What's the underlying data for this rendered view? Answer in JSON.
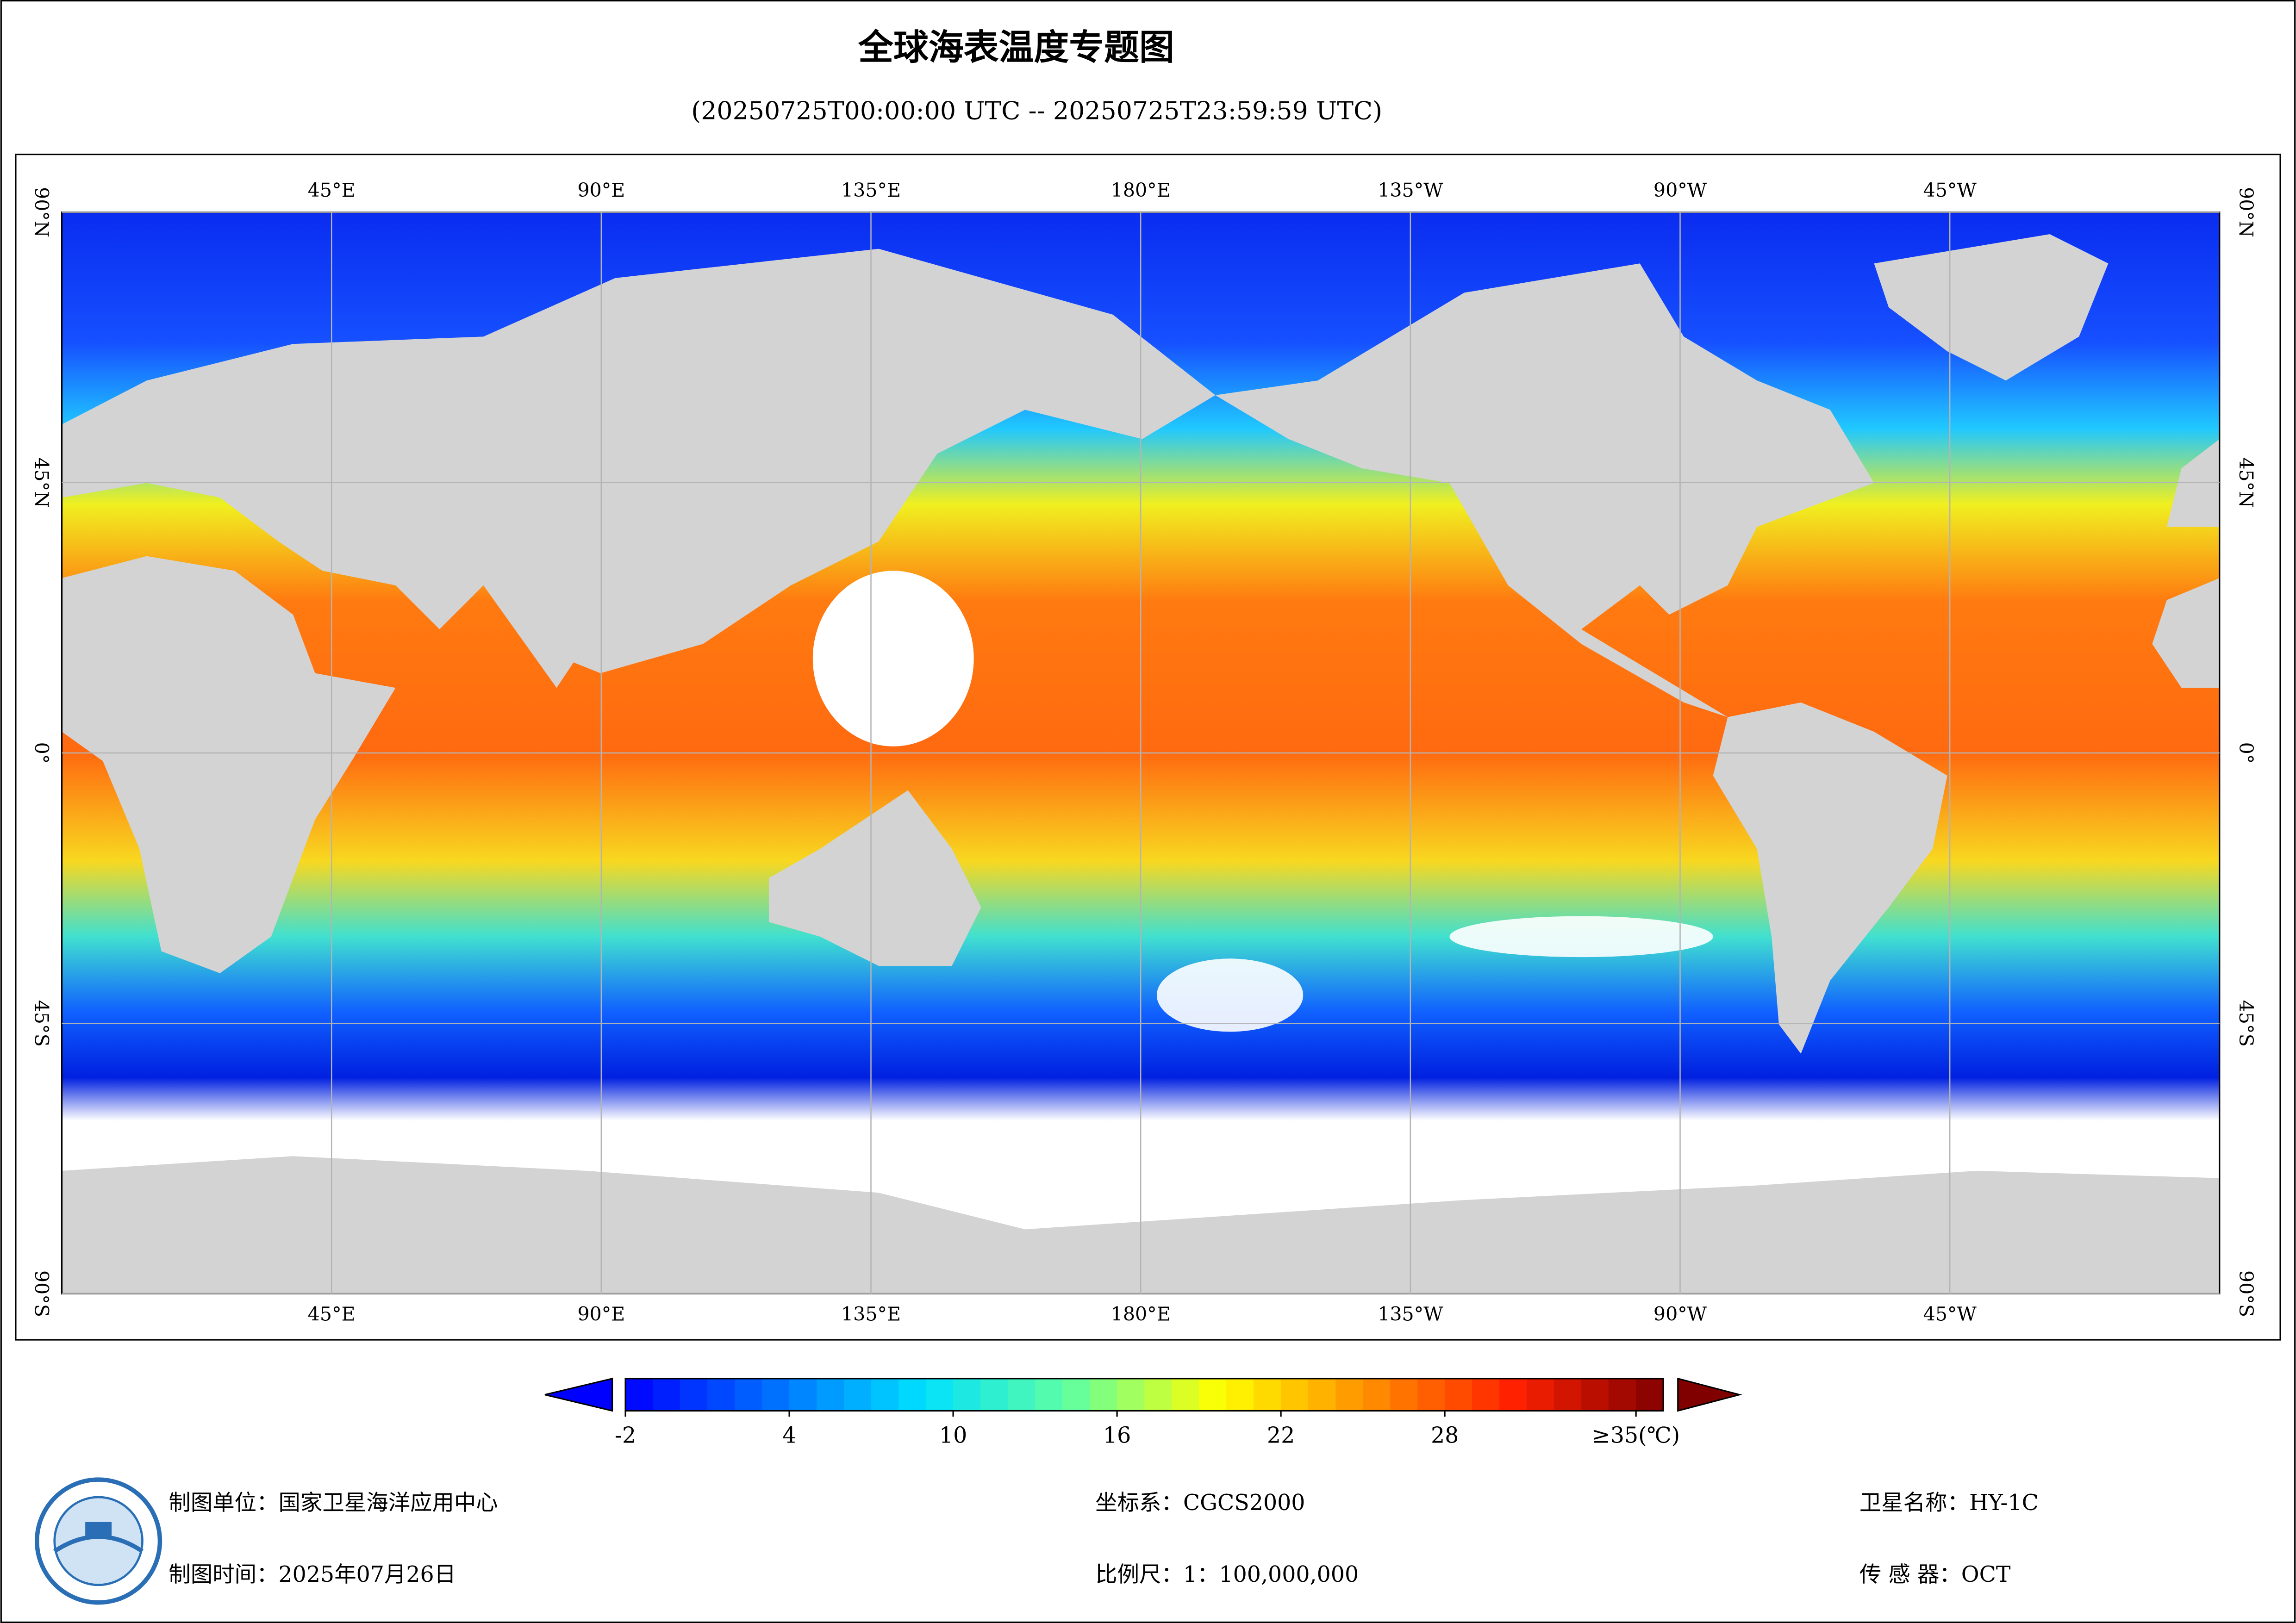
{
  "header": {
    "title": "全球海表温度专题图",
    "subtitle": "(20250725T00:00:00 UTC -- 20250725T23:59:59 UTC)"
  },
  "map": {
    "lon_range": [
      0,
      360
    ],
    "lat_range": [
      -90,
      90
    ],
    "lon_ticks": [
      {
        "value": 45,
        "label": "45°E"
      },
      {
        "value": 90,
        "label": "90°E"
      },
      {
        "value": 135,
        "label": "135°E"
      },
      {
        "value": 180,
        "label": "180°E"
      },
      {
        "value": 225,
        "label": "135°W"
      },
      {
        "value": 270,
        "label": "90°W"
      },
      {
        "value": 315,
        "label": "45°W"
      }
    ],
    "lat_ticks": [
      {
        "value": 90,
        "label": "90°N"
      },
      {
        "value": 45,
        "label": "45°N"
      },
      {
        "value": 0,
        "label": "0°"
      },
      {
        "value": -45,
        "label": "45°S"
      },
      {
        "value": -90,
        "label": "90°S"
      }
    ]
  },
  "colorbar": {
    "range": [
      -2,
      36
    ],
    "ticks": [
      -2,
      4,
      10,
      16,
      22,
      28,
      {
        "value": 35,
        "label": "≥35(℃)"
      }
    ],
    "colors": [
      "#0000ff",
      "#0070ff",
      "#00e0ff",
      "#60ffa0",
      "#ffff00",
      "#ff9000",
      "#ff2000",
      "#800000"
    ]
  },
  "footer": {
    "unit": "制图单位：国家卫星海洋应用中心",
    "time": "制图时间：2025年07月26日",
    "crs": "坐标系：CGCS2000",
    "scale": "比例尺：1：100,000,000",
    "satellite": "卫星名称：HY-1C",
    "sensor": "传 感 器：OCT"
  }
}
